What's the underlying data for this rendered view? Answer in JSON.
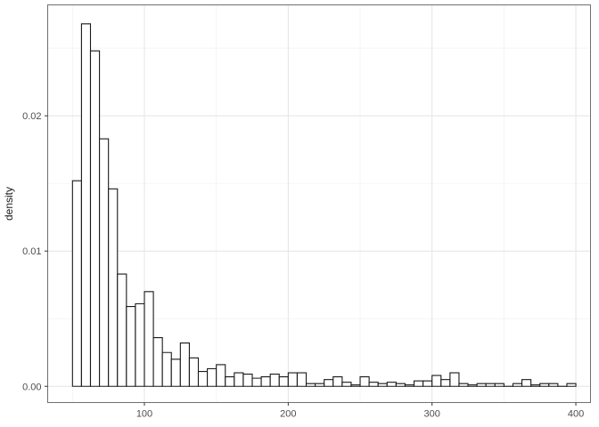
{
  "figure": {
    "background": "#ffffff",
    "panel_bg": "#ffffff",
    "panel_border_color": "#6f6f6f",
    "grid_major_color": "#e4e4e4",
    "grid_minor_color": "#f0f0f0",
    "tick_color": "#333333",
    "tick_label_color": "#4d4d4d"
  },
  "chart_data": {
    "type": "bar",
    "subtype": "histogram",
    "title": "",
    "xlabel": "",
    "ylabel": "density",
    "legend": "none",
    "grid": true,
    "bar_fill": "#ffffff",
    "bar_stroke": "#1a1a1a",
    "bin_start": 50,
    "bin_width": 6.25,
    "densities": [
      0.0152,
      0.0268,
      0.0248,
      0.0183,
      0.0146,
      0.0083,
      0.0059,
      0.0061,
      0.007,
      0.0036,
      0.0025,
      0.002,
      0.0032,
      0.0021,
      0.0011,
      0.0013,
      0.0016,
      0.0007,
      0.001,
      0.0009,
      0.0006,
      0.0007,
      0.0009,
      0.0007,
      0.001,
      0.001,
      0.0002,
      0.0002,
      0.0005,
      0.0007,
      0.0003,
      0.0001,
      0.0007,
      0.0003,
      0.0002,
      0.0003,
      0.0002,
      0.0001,
      0.0004,
      0.0004,
      0.0008,
      0.0005,
      0.001,
      0.0002,
      0.0001,
      0.0002,
      0.0002,
      0.0002,
      0.0,
      0.0002,
      0.0005,
      0.0001,
      0.0002,
      0.0002,
      0.0,
      0.0002
    ],
    "x_ticks": [
      100,
      200,
      300,
      400
    ],
    "x_tick_labels": [
      "100",
      "200",
      "300",
      "400"
    ],
    "x_minor": [
      50,
      150,
      250,
      350
    ],
    "y_ticks": [
      0,
      0.01,
      0.02
    ],
    "y_tick_labels": [
      "0.00",
      "0.01",
      "0.02"
    ],
    "y_minor": [
      0.005,
      0.015,
      0.025
    ],
    "xlim": [
      32.75,
      410.2
    ],
    "ylim": [
      -0.0012,
      0.0282
    ]
  }
}
